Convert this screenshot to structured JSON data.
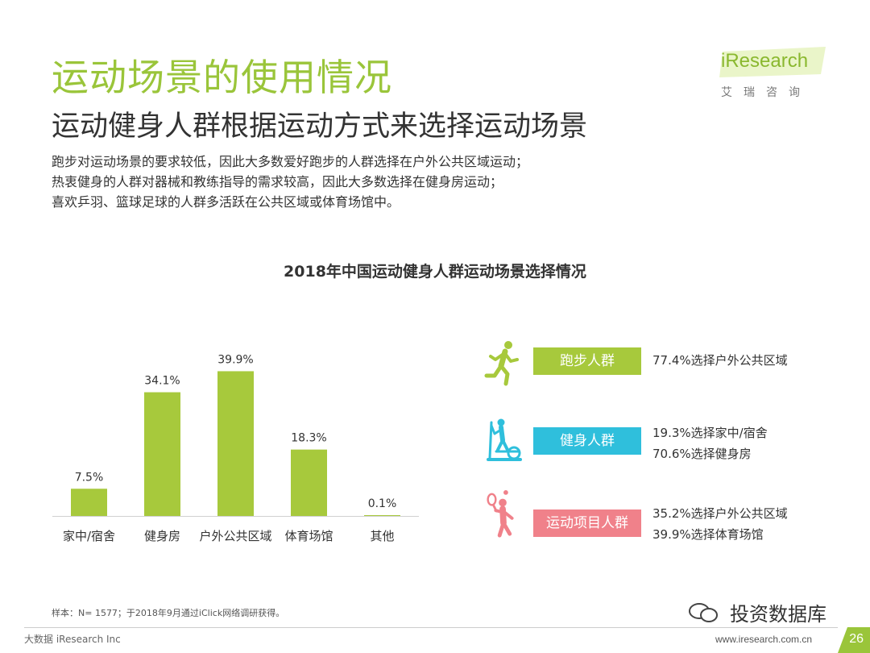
{
  "header": {
    "title": "运动场景的使用情况",
    "subtitle": "运动健身人群根据运动方式来选择运动场景"
  },
  "description": [
    "跑步对运动场景的要求较低，因此大多数爱好跑步的人群选择在户外公共区域运动；",
    "热衷健身的人群对器械和教练指导的需求较高，因此大多数选择在健身房运动；",
    "喜欢乒羽、篮球足球的人群多活跃在公共区域或体育场馆中。"
  ],
  "logo": {
    "text": "iResearch",
    "sub": "艾瑞咨询",
    "color": "#9ac53a"
  },
  "chart_data": {
    "type": "bar",
    "title": "2018年中国运动健身人群运动场景选择情况",
    "categories": [
      "家中/宿舍",
      "健身房",
      "户外公共区域",
      "体育场馆",
      "其他"
    ],
    "values": [
      7.5,
      34.1,
      39.9,
      18.3,
      0.1
    ],
    "value_labels": [
      "7.5%",
      "34.1%",
      "39.9%",
      "18.3%",
      "0.1%"
    ],
    "unit": "%",
    "ylim": [
      0,
      40
    ],
    "grid": false,
    "bar_color": "#a7c93c"
  },
  "groups": [
    {
      "label": "跑步人群",
      "icon": "runner-icon",
      "color": "#a7c93c",
      "values": [
        "77.4%选择户外公共区域"
      ]
    },
    {
      "label": "健身人群",
      "icon": "elliptical-trainer-icon",
      "color": "#2fbfdc",
      "values": [
        "19.3%选择家中/宿舍",
        "70.6%选择健身房"
      ]
    },
    {
      "label": "运动项目人群",
      "icon": "tennis-player-icon",
      "color": "#f0818a",
      "values": [
        "35.2%选择户外公共区域",
        "39.9%选择体育场馆"
      ]
    }
  ],
  "footer": {
    "note": "样本：N= 1577；于2018年9月通过iClick网络调研获得。",
    "left": "大数据 iResearch Inc",
    "right": "www.iresearch.com.cn",
    "page": "26",
    "watermark": "投资数据库"
  }
}
